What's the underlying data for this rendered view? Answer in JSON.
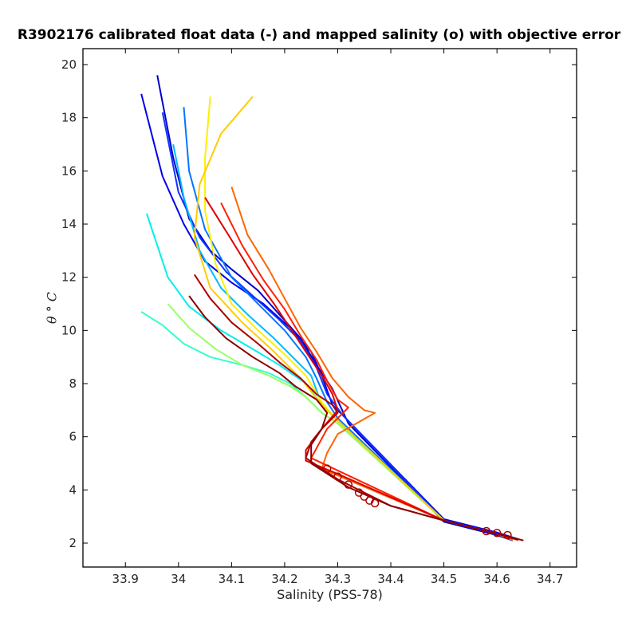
{
  "chart_data": {
    "type": "line",
    "title": "R3902176 calibrated float data (-) and mapped salinity (o) with objective error",
    "xlabel": "Salinity (PSS-78)",
    "ylabel": "θ ° C",
    "xlim": [
      33.82,
      34.75
    ],
    "ylim": [
      1.1,
      20.6
    ],
    "xticks": [
      "33.9",
      "34",
      "34.1",
      "34.2",
      "34.3",
      "34.4",
      "34.5",
      "34.6",
      "34.7"
    ],
    "yticks": [
      "2",
      "4",
      "6",
      "8",
      "10",
      "12",
      "14",
      "16",
      "18",
      "20"
    ],
    "grid": false,
    "legend": "none",
    "colormap": [
      "#00008f",
      "#0000ff",
      "#0080ff",
      "#00ffff",
      "#80ff80",
      "#ffff00",
      "#ff8000",
      "#ff0000",
      "#800000"
    ],
    "series": [
      {
        "color": "#0000cc",
        "x": [
          33.96,
          33.99,
          34.02,
          34.06,
          34.1,
          34.15,
          34.19,
          34.23,
          34.26,
          34.29,
          34.32,
          34.5,
          34.6,
          34.63
        ],
        "y": [
          19.6,
          16.5,
          14.2,
          13.0,
          12.3,
          11.5,
          10.6,
          9.7,
          8.7,
          7.8,
          6.5,
          2.8,
          2.3,
          2.1
        ]
      },
      {
        "color": "#0000ee",
        "x": [
          33.93,
          33.97,
          34.01,
          34.05,
          34.1,
          34.16,
          34.21,
          34.25,
          34.27,
          34.29,
          34.32,
          34.5,
          34.6,
          34.64
        ],
        "y": [
          18.9,
          15.8,
          14.0,
          12.6,
          11.8,
          11.0,
          10.1,
          9.2,
          8.3,
          7.2,
          6.6,
          2.9,
          2.4,
          2.15
        ]
      },
      {
        "color": "#1133ff",
        "x": [
          33.97,
          34.0,
          34.04,
          34.09,
          34.14,
          34.19,
          34.23,
          34.26,
          34.28,
          34.31,
          34.5,
          34.6,
          34.63
        ],
        "y": [
          18.2,
          15.2,
          13.5,
          12.2,
          11.3,
          10.4,
          9.6,
          8.6,
          7.6,
          6.8,
          2.85,
          2.35,
          2.12
        ]
      },
      {
        "color": "#0077ff",
        "x": [
          34.01,
          34.02,
          34.05,
          34.1,
          34.15,
          34.2,
          34.24,
          34.26,
          34.28,
          34.3,
          34.5,
          34.6,
          34.63
        ],
        "y": [
          18.4,
          16.0,
          13.8,
          12.0,
          11.0,
          10.0,
          9.0,
          8.2,
          7.3,
          6.7,
          2.85,
          2.35,
          2.12
        ]
      },
      {
        "color": "#00bbff",
        "x": [
          33.99,
          34.01,
          34.04,
          34.08,
          34.13,
          34.18,
          34.22,
          34.25,
          34.27,
          34.3,
          34.5,
          34.6,
          34.63
        ],
        "y": [
          17.0,
          15.0,
          13.0,
          11.6,
          10.6,
          9.7,
          8.9,
          8.3,
          7.2,
          6.6,
          2.85,
          2.35,
          2.12
        ]
      },
      {
        "color": "#00eeee",
        "x": [
          33.94,
          33.96,
          33.98,
          34.02,
          34.08,
          34.14,
          34.19,
          34.24,
          34.27,
          34.3,
          34.5,
          34.6,
          34.63
        ],
        "y": [
          14.4,
          13.2,
          12.0,
          10.9,
          10.0,
          9.3,
          8.7,
          8.0,
          7.2,
          6.6,
          2.85,
          2.35,
          2.12
        ]
      },
      {
        "color": "#33ffcc",
        "x": [
          33.93,
          33.97,
          34.01,
          34.06,
          34.12,
          34.17,
          34.21,
          34.24,
          34.27,
          34.3,
          34.5,
          34.6,
          34.63
        ],
        "y": [
          10.7,
          10.2,
          9.5,
          9.0,
          8.7,
          8.4,
          8.0,
          7.5,
          6.9,
          6.5,
          2.85,
          2.35,
          2.12
        ]
      },
      {
        "color": "#99ff66",
        "x": [
          33.98,
          34.02,
          34.07,
          34.12,
          34.17,
          34.21,
          34.24,
          34.27,
          34.3,
          34.5,
          34.6,
          34.63
        ],
        "y": [
          11.0,
          10.1,
          9.3,
          8.7,
          8.3,
          7.9,
          7.5,
          6.9,
          6.5,
          2.85,
          2.35,
          2.12
        ]
      },
      {
        "color": "#ffee00",
        "x": [
          34.06,
          34.05,
          34.05,
          34.07,
          34.1,
          34.15,
          34.2,
          34.24,
          34.27,
          34.3,
          34.5,
          34.6,
          34.63
        ],
        "y": [
          18.8,
          16.5,
          14.5,
          12.5,
          11.0,
          10.0,
          9.1,
          8.3,
          7.3,
          6.6,
          2.85,
          2.35,
          2.12
        ]
      },
      {
        "color": "#ffcc00",
        "x": [
          34.14,
          34.08,
          34.04,
          34.03,
          34.06,
          34.12,
          34.18,
          34.23,
          34.27,
          34.3,
          34.5,
          34.6,
          34.63
        ],
        "y": [
          18.8,
          17.4,
          15.5,
          13.5,
          11.6,
          10.3,
          9.2,
          8.2,
          7.2,
          6.6,
          2.85,
          2.35,
          2.12
        ]
      },
      {
        "color": "#ff6600",
        "x": [
          34.1,
          34.13,
          34.17,
          34.2,
          34.23,
          34.26,
          34.29,
          34.32,
          34.35,
          34.37,
          34.3,
          34.28,
          34.27,
          34.5,
          34.6,
          34.63
        ],
        "y": [
          15.4,
          13.6,
          12.3,
          11.2,
          10.1,
          9.2,
          8.2,
          7.5,
          7.0,
          6.9,
          6.1,
          5.4,
          4.8,
          2.85,
          2.35,
          2.12
        ]
      },
      {
        "color": "#ff2200",
        "x": [
          34.08,
          34.12,
          34.16,
          34.2,
          34.23,
          34.26,
          34.28,
          34.3,
          34.32,
          34.28,
          34.25,
          34.5,
          34.6,
          34.64
        ],
        "y": [
          14.8,
          13.2,
          11.9,
          10.8,
          9.8,
          8.9,
          8.1,
          7.4,
          7.1,
          6.3,
          5.2,
          2.85,
          2.35,
          2.12
        ]
      },
      {
        "color": "#dd0000",
        "x": [
          34.05,
          34.1,
          34.14,
          34.18,
          34.21,
          34.24,
          34.27,
          34.29,
          34.3,
          34.27,
          34.24,
          34.24,
          34.3,
          34.5,
          34.6,
          34.64
        ],
        "y": [
          15.0,
          13.4,
          12.1,
          11.0,
          10.1,
          9.2,
          8.3,
          7.6,
          7.0,
          6.3,
          5.5,
          5.1,
          4.6,
          2.85,
          2.35,
          2.12
        ]
      },
      {
        "color": "#aa0000",
        "x": [
          34.03,
          34.06,
          34.1,
          34.15,
          34.19,
          34.23,
          34.26,
          34.29,
          34.3,
          34.27,
          34.25,
          34.24,
          34.3,
          34.4,
          34.5,
          34.6,
          34.64
        ],
        "y": [
          12.1,
          11.2,
          10.3,
          9.5,
          8.8,
          8.2,
          7.6,
          7.2,
          6.9,
          6.3,
          5.8,
          5.2,
          4.4,
          3.4,
          2.85,
          2.35,
          2.12
        ]
      },
      {
        "color": "#880000",
        "x": [
          34.02,
          34.05,
          34.09,
          34.14,
          34.19,
          34.22,
          34.26,
          34.28,
          34.27,
          34.25,
          34.25,
          34.32,
          34.4,
          34.5,
          34.6,
          34.65
        ],
        "y": [
          11.3,
          10.5,
          9.7,
          9.0,
          8.4,
          7.9,
          7.4,
          6.9,
          6.3,
          5.7,
          5.0,
          4.1,
          3.4,
          2.85,
          2.35,
          2.1
        ]
      }
    ],
    "mapped_points": {
      "marker": "o",
      "color": "#aa0000",
      "x": [
        34.28,
        34.3,
        34.32,
        34.34,
        34.35,
        34.36,
        34.37,
        34.58,
        34.6,
        34.62
      ],
      "y": [
        4.8,
        4.5,
        4.2,
        3.9,
        3.75,
        3.6,
        3.5,
        2.45,
        2.38,
        2.3
      ]
    }
  }
}
